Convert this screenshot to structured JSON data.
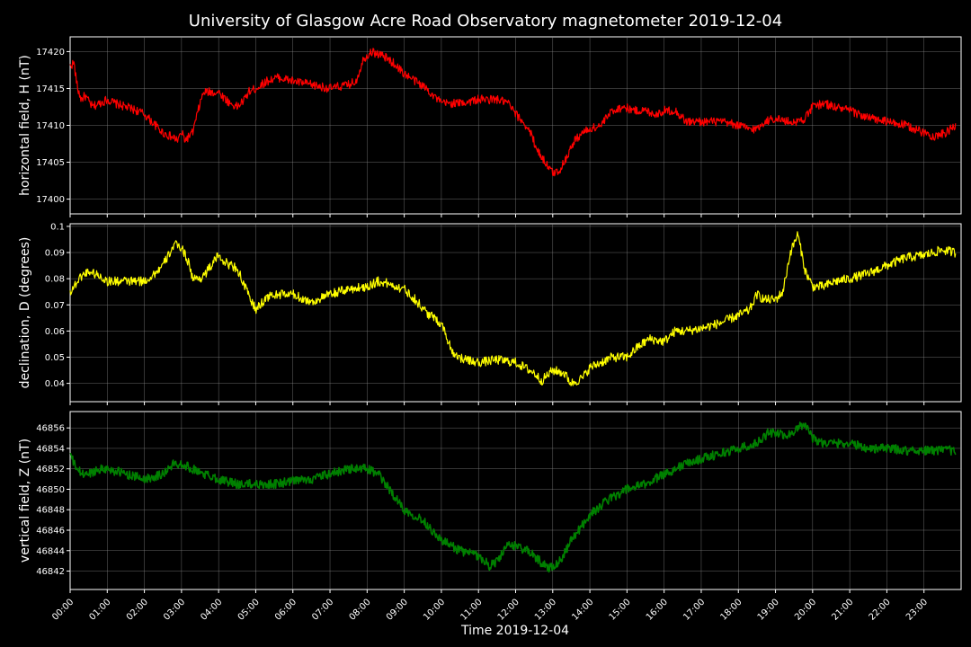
{
  "chart_data": {
    "title": "University of Glasgow Acre Road Observatory magnetometer 2019-12-04",
    "xlabel": "Time 2019-12-04",
    "grid": true,
    "x_ticks": [
      "00:00",
      "01:00",
      "02:00",
      "03:00",
      "04:00",
      "05:00",
      "06:00",
      "07:00",
      "08:00",
      "09:00",
      "10:00",
      "11:00",
      "12:00",
      "13:00",
      "14:00",
      "15:00",
      "16:00",
      "17:00",
      "18:00",
      "19:00",
      "20:00",
      "21:00",
      "22:00",
      "23:00"
    ],
    "panels": [
      {
        "type": "line",
        "ylabel": "horizontal field, H (nT)",
        "color": "#ff0000",
        "ylim": [
          17398,
          17422
        ],
        "yticks": [
          17400,
          17405,
          17410,
          17415,
          17420
        ],
        "noise": 0.6,
        "x_hours": [
          0,
          0.1,
          0.2,
          0.3,
          0.4,
          0.6,
          0.8,
          1.0,
          1.2,
          1.5,
          1.8,
          2.0,
          2.3,
          2.5,
          2.7,
          2.9,
          3.0,
          3.1,
          3.3,
          3.5,
          3.6,
          3.8,
          4.0,
          4.3,
          4.5,
          4.7,
          4.8,
          5.0,
          5.3,
          5.6,
          6.0,
          6.5,
          7.0,
          7.5,
          7.7,
          7.9,
          8.1,
          8.4,
          8.7,
          9.0,
          9.3,
          9.6,
          9.8,
          10.0,
          10.5,
          11.0,
          11.5,
          11.8,
          12.0,
          12.2,
          12.4,
          12.6,
          12.8,
          13.0,
          13.2,
          13.4,
          13.6,
          13.8,
          14.0,
          14.3,
          14.6,
          14.9,
          15.2,
          15.5,
          15.8,
          16.0,
          16.3,
          16.6,
          17.0,
          17.5,
          18.0,
          18.3,
          18.5,
          18.7,
          19.0,
          19.3,
          19.6,
          19.8,
          20.0,
          20.3,
          20.6,
          21.0,
          21.5,
          22.0,
          22.5,
          23.0,
          23.3,
          23.6,
          23.85
        ],
        "values": [
          17418,
          17418.5,
          17415,
          17413.5,
          17414,
          17412.5,
          17413,
          17413.5,
          17413,
          17412.5,
          17412,
          17411.5,
          17410,
          17409,
          17408.5,
          17408,
          17409,
          17408,
          17409,
          17413,
          17414.5,
          17414.5,
          17414.5,
          17413,
          17412.5,
          17413.5,
          17414.5,
          17415,
          17416,
          17416.5,
          17416,
          17415.5,
          17415,
          17415.5,
          17416,
          17419,
          17420,
          17419.5,
          17418.5,
          17417,
          17416,
          17415,
          17414,
          17413,
          17413,
          17413.5,
          17413.5,
          17413,
          17411.5,
          17410.5,
          17409,
          17406.5,
          17405,
          17403.5,
          17404,
          17406,
          17408,
          17409,
          17409.5,
          17410,
          17412,
          17412.5,
          17412,
          17412,
          17411.5,
          17412,
          17412,
          17410.5,
          17410.5,
          17410.5,
          17410,
          17409.5,
          17409.5,
          17410.5,
          17411,
          17410.5,
          17410.5,
          17411,
          17412.5,
          17413,
          17412.5,
          17412,
          17411,
          17410.5,
          17410,
          17409,
          17408.5,
          17409,
          17410
        ]
      },
      {
        "type": "line",
        "ylabel": "declination, D (degrees)",
        "color": "#ffff00",
        "ylim": [
          0.033,
          0.101
        ],
        "yticks": [
          0.04,
          0.05,
          0.06,
          0.07,
          0.08,
          0.09,
          0.1
        ],
        "noise": 0.0018,
        "x_hours": [
          0,
          0.1,
          0.3,
          0.5,
          0.8,
          1.0,
          1.5,
          2.0,
          2.2,
          2.5,
          2.8,
          3.0,
          3.2,
          3.3,
          3.5,
          3.7,
          4.0,
          4.2,
          4.5,
          4.7,
          4.9,
          5.0,
          5.3,
          5.6,
          6.0,
          6.5,
          7.0,
          7.5,
          8.0,
          8.3,
          8.6,
          9.0,
          9.3,
          9.6,
          10.0,
          10.3,
          10.6,
          11.0,
          11.5,
          12.0,
          12.5,
          12.7,
          13.0,
          13.3,
          13.5,
          13.8,
          14.0,
          14.3,
          14.6,
          15.0,
          15.3,
          15.6,
          16.0,
          16.3,
          16.6,
          17.0,
          17.5,
          18.0,
          18.3,
          18.5,
          18.7,
          19.0,
          19.2,
          19.4,
          19.6,
          19.8,
          20.0,
          20.3,
          20.6,
          21.0,
          21.5,
          22.0,
          22.5,
          23.0,
          23.5,
          23.85
        ],
        "values": [
          0.075,
          0.077,
          0.081,
          0.083,
          0.081,
          0.079,
          0.079,
          0.079,
          0.081,
          0.085,
          0.093,
          0.092,
          0.086,
          0.08,
          0.08,
          0.083,
          0.089,
          0.086,
          0.084,
          0.077,
          0.071,
          0.068,
          0.073,
          0.074,
          0.074,
          0.071,
          0.074,
          0.076,
          0.077,
          0.079,
          0.078,
          0.076,
          0.072,
          0.067,
          0.063,
          0.052,
          0.049,
          0.048,
          0.049,
          0.048,
          0.044,
          0.041,
          0.045,
          0.044,
          0.04,
          0.042,
          0.046,
          0.048,
          0.05,
          0.05,
          0.054,
          0.057,
          0.056,
          0.06,
          0.06,
          0.061,
          0.063,
          0.066,
          0.068,
          0.074,
          0.072,
          0.072,
          0.075,
          0.09,
          0.097,
          0.083,
          0.077,
          0.077,
          0.079,
          0.08,
          0.082,
          0.085,
          0.088,
          0.089,
          0.091,
          0.09
        ]
      },
      {
        "type": "line",
        "ylabel": "vertical field, Z (nT)",
        "color": "#008000",
        "ylim": [
          46840.2,
          46857.6
        ],
        "yticks": [
          46842,
          46844,
          46846,
          46848,
          46850,
          46852,
          46854,
          46856
        ],
        "noise": 0.45,
        "x_hours": [
          0,
          0.1,
          0.3,
          0.5,
          0.8,
          1.0,
          1.5,
          2.0,
          2.5,
          2.8,
          3.0,
          3.3,
          3.6,
          4.0,
          4.5,
          5.0,
          5.5,
          6.0,
          6.5,
          7.0,
          7.5,
          8.0,
          8.3,
          8.6,
          9.0,
          9.5,
          10.0,
          10.5,
          11.0,
          11.3,
          11.5,
          11.8,
          12.0,
          12.3,
          12.5,
          12.7,
          12.9,
          13.2,
          13.5,
          14.0,
          14.5,
          15.0,
          15.5,
          16.0,
          16.3,
          16.6,
          17.0,
          17.5,
          18.0,
          18.5,
          18.8,
          19.0,
          19.3,
          19.6,
          19.8,
          20.0,
          20.3,
          20.6,
          21.0,
          21.5,
          22.0,
          22.5,
          23.0,
          23.5,
          23.85
        ],
        "values": [
          46853.5,
          46852.5,
          46851.5,
          46851.5,
          46852,
          46852,
          46851.5,
          46851,
          46851.5,
          46852.5,
          46852.5,
          46852,
          46851.5,
          46851,
          46850.5,
          46850.5,
          46850.5,
          46850.8,
          46851,
          46851.5,
          46852,
          46852,
          46851.5,
          46850,
          46848,
          46847,
          46845,
          46844,
          46843.5,
          46842.5,
          46843,
          46844.5,
          46844.5,
          46844,
          46843.5,
          46842.8,
          46842.3,
          46843,
          46845,
          46847.5,
          46849,
          46850,
          46850.5,
          46851.5,
          46852,
          46852.5,
          46853,
          46853.5,
          46854,
          46854.5,
          46855.5,
          46855.5,
          46855.2,
          46856,
          46856.5,
          46855,
          46854.5,
          46854.5,
          46854.5,
          46854,
          46854,
          46853.8,
          46853.8,
          46853.8,
          46853.8
        ]
      }
    ]
  }
}
